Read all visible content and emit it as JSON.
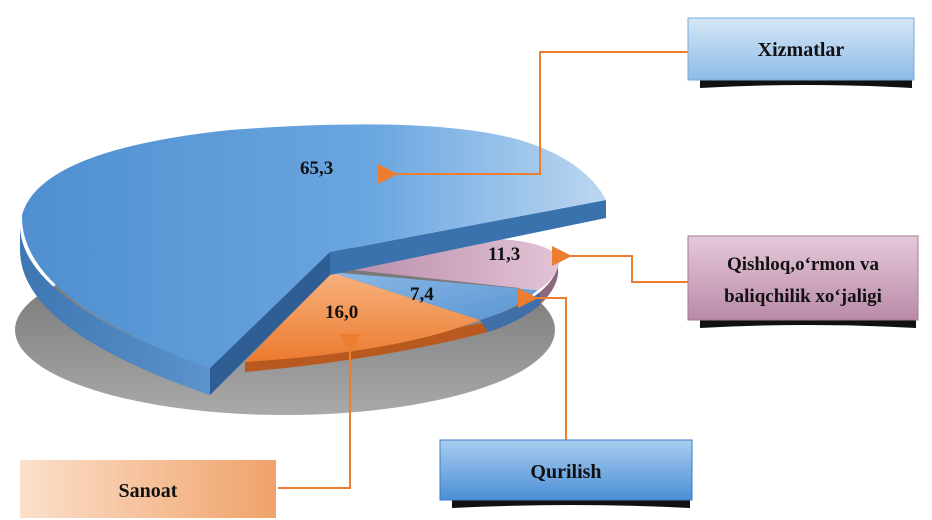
{
  "chart_data": {
    "type": "pie",
    "title": "",
    "series": [
      {
        "name": "Xizmatlar",
        "value": 65.3,
        "value_label": "65,3",
        "color": "#5b9bd5"
      },
      {
        "name": "Qishloq,o‘rmon va baliqchilik xo‘jaligi",
        "value": 11.3,
        "value_label": "11,3",
        "color": "#c9a0b8"
      },
      {
        "name": "Qurilish",
        "value": 7.4,
        "value_label": "7,4",
        "color": "#6fa3db"
      },
      {
        "name": "Sanoat",
        "value": 16.0,
        "value_label": "16,0",
        "color": "#ed7d31"
      }
    ],
    "style": "3d-exploded",
    "legend": "callout boxes"
  },
  "labels": {
    "xizmatlar": "Xizmatlar",
    "qishloq_line1": "Qishloq,o‘rmon va",
    "qishloq_line2": "baliqchilik xo‘jaligi",
    "qurilish": "Qurilish",
    "sanoat": "Sanoat"
  },
  "colors": {
    "connector": "#ed7d31",
    "shadow": "#8a8a8a"
  }
}
